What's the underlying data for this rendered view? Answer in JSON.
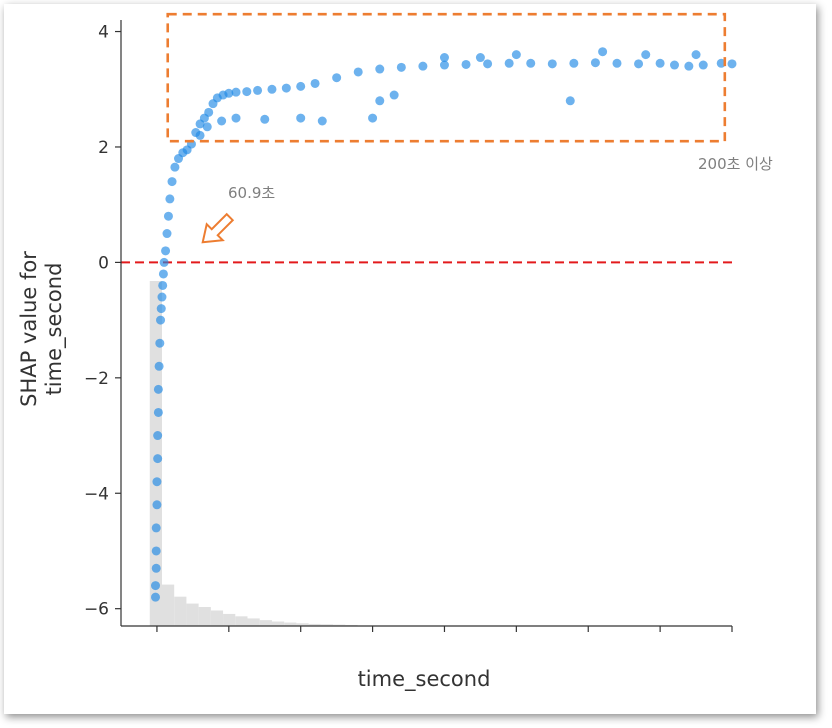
{
  "chart_data": {
    "type": "scatter",
    "title": "",
    "xlabel": "time_second",
    "ylabel_line1": "SHAP value for",
    "ylabel_line2": "time_second",
    "ylim": [
      -6.3,
      4.2
    ],
    "yticks": [
      4,
      2,
      0,
      -2,
      -4,
      -6
    ],
    "ytick_labels": [
      "4",
      "2",
      "0",
      "−2",
      "−4",
      "−6"
    ],
    "xlim": [
      -50,
      800
    ],
    "xticks": [
      0,
      100,
      200,
      300,
      400,
      500,
      600,
      700,
      800
    ],
    "x_tick_labels_visible": false,
    "grid": false,
    "point_color": "#1e88e5",
    "zero_line_color": "#e31a1c",
    "histogram_color": "#e0e0e0",
    "histogram": {
      "bin_width": 17,
      "relative_heights": [
        1.0,
        0.12,
        0.085,
        0.065,
        0.055,
        0.045,
        0.035,
        0.028,
        0.022,
        0.017,
        0.013,
        0.01,
        0.008,
        0.006,
        0.005,
        0.004,
        0.003
      ]
    },
    "series": [
      {
        "points": [
          [
            -2,
            -5.8
          ],
          [
            -2,
            -5.6
          ],
          [
            -1,
            -5.3
          ],
          [
            -1,
            -5.0
          ],
          [
            -1,
            -4.6
          ],
          [
            0,
            -4.2
          ],
          [
            0,
            -3.8
          ],
          [
            1,
            -3.4
          ],
          [
            1,
            -3.0
          ],
          [
            2,
            -2.6
          ],
          [
            2,
            -2.2
          ],
          [
            3,
            -1.8
          ],
          [
            4,
            -1.4
          ],
          [
            5,
            -1.0
          ],
          [
            6,
            -0.8
          ],
          [
            7,
            -0.6
          ],
          [
            8,
            -0.4
          ],
          [
            9,
            -0.2
          ],
          [
            10,
            0.0
          ],
          [
            12,
            0.2
          ],
          [
            14,
            0.5
          ],
          [
            16,
            0.8
          ],
          [
            18,
            1.1
          ],
          [
            21,
            1.4
          ],
          [
            25,
            1.65
          ],
          [
            30,
            1.8
          ],
          [
            36,
            1.9
          ],
          [
            42,
            1.95
          ],
          [
            48,
            2.05
          ],
          [
            54,
            2.25
          ],
          [
            60,
            2.4
          ],
          [
            66,
            2.5
          ],
          [
            72,
            2.6
          ],
          [
            78,
            2.75
          ],
          [
            84,
            2.85
          ],
          [
            92,
            2.9
          ],
          [
            100,
            2.93
          ],
          [
            110,
            2.95
          ],
          [
            125,
            2.96
          ],
          [
            140,
            2.98
          ],
          [
            160,
            3.0
          ],
          [
            180,
            3.02
          ],
          [
            200,
            3.05
          ],
          [
            220,
            3.1
          ],
          [
            250,
            3.2
          ],
          [
            280,
            3.3
          ],
          [
            310,
            3.35
          ],
          [
            340,
            3.38
          ],
          [
            370,
            3.4
          ],
          [
            400,
            3.42
          ],
          [
            430,
            3.43
          ],
          [
            460,
            3.44
          ],
          [
            490,
            3.45
          ],
          [
            520,
            3.45
          ],
          [
            550,
            3.44
          ],
          [
            580,
            3.45
          ],
          [
            610,
            3.46
          ],
          [
            640,
            3.45
          ],
          [
            670,
            3.44
          ],
          [
            700,
            3.45
          ],
          [
            720,
            3.42
          ],
          [
            740,
            3.4
          ],
          [
            760,
            3.42
          ],
          [
            785,
            3.45
          ],
          [
            800,
            3.44
          ],
          [
            60,
            2.2
          ],
          [
            70,
            2.35
          ],
          [
            90,
            2.45
          ],
          [
            110,
            2.5
          ],
          [
            150,
            2.48
          ],
          [
            200,
            2.5
          ],
          [
            230,
            2.45
          ],
          [
            310,
            2.8
          ],
          [
            330,
            2.9
          ],
          [
            500,
            3.6
          ],
          [
            620,
            3.65
          ],
          [
            680,
            3.6
          ],
          [
            575,
            2.8
          ],
          [
            300,
            2.5
          ],
          [
            400,
            3.55
          ],
          [
            450,
            3.55
          ],
          [
            750,
            3.6
          ]
        ]
      }
    ],
    "annotations": [
      {
        "text": "60.9초",
        "x": 60.9,
        "y": 0.35,
        "marker": "arrow",
        "color": "#ed7d31"
      },
      {
        "text": "200초 이상",
        "x_range": [
          15,
          790
        ],
        "y_range": [
          2.1,
          4.3
        ],
        "marker": "dashed-box",
        "color": "#ed7d31"
      }
    ]
  }
}
